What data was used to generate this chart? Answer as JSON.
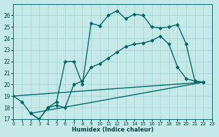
{
  "xlabel": "Humidex (Indice chaleur)",
  "background_color": "#c5e8e8",
  "grid_color": "#a8d0d0",
  "line_color": "#006666",
  "xlim": [
    0,
    23
  ],
  "ylim": [
    17,
    27
  ],
  "xticks": [
    0,
    1,
    2,
    3,
    4,
    5,
    6,
    7,
    8,
    9,
    10,
    11,
    12,
    13,
    14,
    15,
    16,
    17,
    18,
    19,
    20,
    21,
    22,
    23
  ],
  "yticks": [
    17,
    18,
    19,
    20,
    21,
    22,
    23,
    24,
    25,
    26
  ],
  "lines": [
    {
      "x": [
        0,
        1,
        2,
        3,
        4,
        5,
        6,
        7,
        8,
        9,
        10,
        11,
        12,
        13,
        14,
        15,
        16,
        17,
        18,
        19,
        20,
        21,
        22
      ],
      "y": [
        19,
        18.5,
        17.5,
        17.0,
        18.0,
        18.5,
        22.0,
        22.0,
        20.0,
        25.3,
        25.1,
        26.0,
        26.4,
        25.7,
        26.1,
        26.0,
        25.0,
        24.9,
        25.0,
        25.2,
        23.5,
        20.3,
        20.2
      ],
      "marker": "D",
      "markersize": 2.5,
      "linewidth": 1.0
    },
    {
      "x": [
        2,
        3,
        4,
        5,
        6,
        7,
        8,
        9,
        10,
        11,
        12,
        13,
        14,
        15,
        16,
        17,
        18,
        19,
        20,
        21,
        22
      ],
      "y": [
        17.5,
        17.0,
        18.0,
        18.2,
        18.0,
        20.0,
        20.3,
        21.5,
        21.8,
        22.3,
        22.8,
        23.3,
        23.5,
        23.6,
        23.8,
        24.2,
        23.5,
        21.5,
        20.5,
        20.3,
        20.2
      ],
      "marker": "D",
      "markersize": 2.5,
      "linewidth": 1.0
    },
    {
      "x": [
        0,
        22
      ],
      "y": [
        19,
        20.2
      ],
      "marker": null,
      "markersize": 0,
      "linewidth": 1.0
    },
    {
      "x": [
        2,
        22
      ],
      "y": [
        17.5,
        20.2
      ],
      "marker": null,
      "markersize": 0,
      "linewidth": 1.0
    }
  ]
}
